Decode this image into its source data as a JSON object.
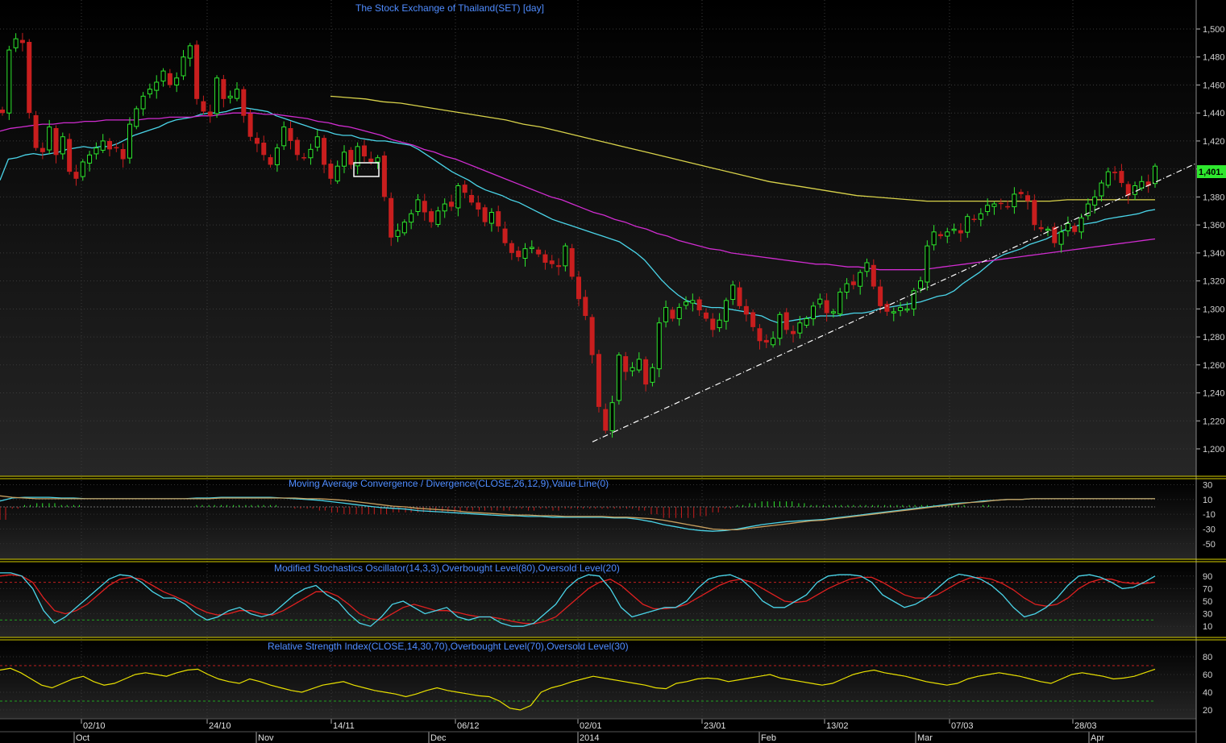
{
  "colors": {
    "background_top": "#000000",
    "background_bottom": "#2a2a2a",
    "up_candle": "#2ee82e",
    "down_candle": "#c81e1e",
    "ma_short": "#4ad4e8",
    "ma_mid": "#d02cd0",
    "ma_long": "#d8d24a",
    "trendline": "#ffffff",
    "macd_line": "#4ad4e8",
    "macd_signal": "#c8a060",
    "stoch_k": "#4ad4e8",
    "stoch_d": "#e02020",
    "rsi_line": "#e8e000",
    "overbought": "#c02020",
    "oversold": "#20a020",
    "panel_border": "#d8d000"
  },
  "chart_data": [
    {
      "type": "candlestick",
      "title": "The Stock Exchange of Thailand(SET) [day]",
      "last_value_label": "1,401.",
      "ylim": [
        1190,
        1510
      ],
      "y_ticks": [
        "1,200",
        "1,220",
        "1,240",
        "1,260",
        "1,280",
        "1,300",
        "1,320",
        "1,340",
        "1,360",
        "1,380",
        "1,400",
        "1,420",
        "1,440",
        "1,460",
        "1,480",
        "1,500"
      ],
      "x_date_labels": [
        "02/10",
        "24/10",
        "14/11",
        "06/12",
        "02/01",
        "23/01",
        "13/02",
        "07/03",
        "28/03"
      ],
      "x_month_labels": [
        "Oct",
        "Nov",
        "Dec",
        "2014",
        "Feb",
        "Mar",
        "Apr"
      ],
      "closes": [
        1440,
        1485,
        1493,
        1490,
        1440,
        1415,
        1412,
        1430,
        1410,
        1423,
        1398,
        1393,
        1405,
        1410,
        1415,
        1420,
        1414,
        1415,
        1407,
        1432,
        1443,
        1452,
        1457,
        1462,
        1470,
        1460,
        1465,
        1480,
        1488,
        1450,
        1441,
        1438,
        1465,
        1450,
        1452,
        1457,
        1438,
        1423,
        1418,
        1410,
        1403,
        1415,
        1430,
        1420,
        1410,
        1408,
        1414,
        1423,
        1403,
        1393,
        1402,
        1412,
        1403,
        1416,
        1409,
        1405,
        1408,
        1380,
        1351,
        1356,
        1362,
        1368,
        1378,
        1369,
        1362,
        1370,
        1375,
        1373,
        1388,
        1383,
        1376,
        1371,
        1362,
        1369,
        1359,
        1347,
        1340,
        1337,
        1343,
        1344,
        1339,
        1333,
        1332,
        1330,
        1345,
        1323,
        1307,
        1295,
        1267,
        1230,
        1213,
        1233,
        1267,
        1255,
        1258,
        1264,
        1246,
        1258,
        1290,
        1301,
        1293,
        1301,
        1305,
        1306,
        1299,
        1293,
        1285,
        1292,
        1306,
        1317,
        1302,
        1296,
        1287,
        1277,
        1276,
        1279,
        1296,
        1285,
        1282,
        1290,
        1293,
        1302,
        1307,
        1297,
        1298,
        1312,
        1318,
        1317,
        1326,
        1333,
        1316,
        1302,
        1298,
        1298,
        1301,
        1300,
        1313,
        1320,
        1345,
        1355,
        1352,
        1355,
        1357,
        1354,
        1366,
        1364,
        1368,
        1374,
        1375,
        1375,
        1373,
        1382,
        1382,
        1377,
        1360,
        1357,
        1357,
        1347,
        1355,
        1361,
        1355,
        1365,
        1375,
        1380,
        1390,
        1398,
        1397,
        1390,
        1381,
        1388,
        1391,
        1388,
        1402
      ],
      "series": [
        {
          "name": "",
          "role": "ma_short",
          "values": [
            1392,
            1407,
            1408,
            1410,
            1411,
            1410,
            1411,
            1412,
            1414,
            1415,
            1416,
            1415,
            1416,
            1416,
            1418,
            1421,
            1424,
            1426,
            1428,
            1430,
            1433,
            1435,
            1436,
            1437,
            1439,
            1440,
            1440,
            1441,
            1443,
            1444,
            1443,
            1442,
            1441,
            1438,
            1436,
            1434,
            1432,
            1430,
            1428,
            1427,
            1425,
            1424,
            1424,
            1422,
            1421,
            1420,
            1420,
            1419,
            1418,
            1417,
            1414,
            1410,
            1406,
            1402,
            1398,
            1395,
            1392,
            1388,
            1385,
            1383,
            1381,
            1378,
            1376,
            1373,
            1370,
            1367,
            1364,
            1362,
            1360,
            1358,
            1356,
            1354,
            1352,
            1350,
            1348,
            1344,
            1340,
            1335,
            1328,
            1321,
            1315,
            1310,
            1306,
            1304,
            1302,
            1301,
            1301,
            1300,
            1299,
            1298,
            1296,
            1295,
            1292,
            1290,
            1291,
            1292,
            1293,
            1294,
            1295,
            1295,
            1295,
            1296,
            1297,
            1297,
            1298,
            1300,
            1301,
            1302,
            1303,
            1304,
            1305,
            1307,
            1309,
            1310,
            1313,
            1318,
            1322,
            1326,
            1331,
            1336,
            1339,
            1341,
            1343,
            1346,
            1348,
            1350,
            1353,
            1356,
            1358,
            1360,
            1361,
            1362,
            1364,
            1365,
            1366,
            1367,
            1368,
            1370,
            1371
          ]
        },
        {
          "name": "",
          "role": "ma_mid",
          "values": [
            1427,
            1429,
            1430,
            1431,
            1432,
            1432,
            1433,
            1433,
            1434,
            1434,
            1435,
            1435,
            1435,
            1435,
            1436,
            1436,
            1437,
            1437,
            1437,
            1438,
            1438,
            1439,
            1440,
            1440,
            1440,
            1439,
            1439,
            1438,
            1437,
            1436,
            1434,
            1433,
            1431,
            1430,
            1428,
            1426,
            1424,
            1421,
            1419,
            1417,
            1414,
            1412,
            1409,
            1407,
            1404,
            1401,
            1398,
            1395,
            1392,
            1389,
            1386,
            1383,
            1380,
            1378,
            1375,
            1372,
            1369,
            1367,
            1364,
            1362,
            1359,
            1357,
            1354,
            1352,
            1349,
            1347,
            1345,
            1343,
            1342,
            1340,
            1339,
            1338,
            1337,
            1336,
            1335,
            1334,
            1333,
            1332,
            1332,
            1331,
            1330,
            1330,
            1329,
            1328,
            1328,
            1328,
            1328,
            1328,
            1329,
            1330,
            1331,
            1332,
            1333,
            1334,
            1335,
            1336,
            1337,
            1338,
            1339,
            1340,
            1341,
            1342,
            1343,
            1344,
            1345,
            1346,
            1347,
            1348,
            1349,
            1350
          ]
        },
        {
          "name": "",
          "role": "ma_long",
          "values": [
            1452,
            1451,
            1450,
            1448,
            1447,
            1445,
            1443,
            1441,
            1439,
            1437,
            1435,
            1432,
            1430,
            1427,
            1424,
            1421,
            1418,
            1415,
            1412,
            1409,
            1406,
            1403,
            1400,
            1397,
            1394,
            1391,
            1389,
            1387,
            1385,
            1383,
            1381,
            1380,
            1379,
            1378,
            1377,
            1377,
            1377,
            1377,
            1377,
            1377,
            1377,
            1377,
            1378,
            1378,
            1378,
            1378,
            1378,
            1378
          ]
        }
      ],
      "trendline": {
        "from": [
          "02/01",
          1205
        ],
        "to": [
          "Apr",
          1402
        ]
      }
    },
    {
      "type": "line",
      "title": "Moving Average Convergence / Divergence(CLOSE,26,12,9),Value Line(0)",
      "ylim": [
        -58,
        38
      ],
      "y_ticks": [
        "30",
        "10",
        "-10",
        "-30",
        "-50"
      ],
      "series": [
        {
          "name": "",
          "role": "macd_line",
          "values": [
            8,
            12,
            13,
            13,
            13,
            12,
            12,
            11,
            11,
            11,
            11,
            11,
            11,
            11,
            11,
            11,
            12,
            12,
            13,
            13,
            13,
            13,
            13,
            12,
            11,
            10,
            9,
            7,
            5,
            3,
            1,
            -1,
            -2,
            -3,
            -5,
            -6,
            -7,
            -8,
            -9,
            -10,
            -11,
            -12,
            -12,
            -13,
            -13,
            -14,
            -14,
            -14,
            -14,
            -14,
            -15,
            -15,
            -17,
            -20,
            -24,
            -27,
            -30,
            -32,
            -33,
            -32,
            -30,
            -27,
            -24,
            -22,
            -20,
            -19,
            -18,
            -17,
            -15,
            -13,
            -11,
            -9,
            -7,
            -5,
            -3,
            -1,
            1,
            3,
            5,
            6,
            8,
            9,
            10,
            10,
            11,
            11,
            11,
            11,
            11,
            11,
            11,
            11,
            11,
            11,
            11
          ]
        },
        {
          "name": "",
          "role": "macd_signal",
          "values": [
            15,
            13,
            12,
            11,
            11,
            11,
            11,
            11,
            11,
            11,
            11,
            11,
            11,
            11,
            11,
            11,
            11,
            11,
            12,
            12,
            12,
            12,
            12,
            12,
            12,
            11,
            11,
            10,
            9,
            7,
            5,
            3,
            1,
            0,
            -2,
            -3,
            -4,
            -5,
            -7,
            -8,
            -9,
            -10,
            -11,
            -11,
            -12,
            -12,
            -13,
            -13,
            -13,
            -13,
            -14,
            -14,
            -15,
            -16,
            -18,
            -21,
            -24,
            -27,
            -30,
            -31,
            -31,
            -29,
            -27,
            -25,
            -23,
            -21,
            -19,
            -18,
            -16,
            -14,
            -12,
            -10,
            -8,
            -6,
            -4,
            -2,
            0,
            2,
            4,
            6,
            7,
            9,
            10,
            10,
            11,
            11,
            11,
            11,
            11,
            11,
            11,
            11,
            11,
            11,
            11
          ]
        }
      ]
    },
    {
      "type": "line",
      "title": "Modified Stochastics Oscillator(14,3,3),Overbought Level(80),Oversold Level(20)",
      "ylim": [
        0,
        100
      ],
      "y_ticks": [
        "90",
        "70",
        "50",
        "30",
        "10"
      ],
      "overbought": 80,
      "oversold": 20,
      "series": [
        {
          "name": "",
          "role": "stoch_k",
          "values": [
            95,
            95,
            90,
            70,
            35,
            15,
            25,
            40,
            55,
            70,
            85,
            92,
            90,
            80,
            65,
            55,
            55,
            45,
            30,
            20,
            25,
            35,
            40,
            30,
            25,
            30,
            45,
            60,
            70,
            75,
            60,
            50,
            30,
            15,
            10,
            25,
            45,
            50,
            40,
            30,
            35,
            40,
            25,
            20,
            25,
            25,
            15,
            10,
            10,
            15,
            30,
            45,
            70,
            85,
            92,
            90,
            70,
            40,
            25,
            30,
            35,
            40,
            40,
            50,
            70,
            85,
            90,
            92,
            85,
            70,
            50,
            40,
            40,
            50,
            60,
            80,
            90,
            92,
            92,
            90,
            80,
            60,
            50,
            40,
            45,
            55,
            70,
            85,
            93,
            90,
            85,
            75,
            60,
            40,
            25,
            30,
            40,
            55,
            75,
            90,
            92,
            88,
            80,
            70,
            72,
            80,
            90
          ]
        },
        {
          "name": "",
          "role": "stoch_d",
          "values": [
            90,
            92,
            90,
            80,
            55,
            35,
            30,
            35,
            45,
            60,
            75,
            85,
            88,
            85,
            75,
            65,
            58,
            50,
            40,
            32,
            28,
            30,
            35,
            35,
            30,
            28,
            35,
            45,
            55,
            65,
            65,
            58,
            45,
            30,
            22,
            20,
            30,
            40,
            45,
            40,
            35,
            35,
            32,
            28,
            25,
            25,
            22,
            18,
            15,
            14,
            18,
            25,
            40,
            55,
            70,
            80,
            85,
            75,
            60,
            45,
            38,
            38,
            40,
            45,
            55,
            65,
            75,
            82,
            85,
            80,
            70,
            60,
            50,
            48,
            50,
            60,
            70,
            78,
            85,
            88,
            88,
            80,
            70,
            60,
            55,
            55,
            60,
            70,
            80,
            87,
            88,
            85,
            78,
            68,
            55,
            45,
            42,
            45,
            55,
            70,
            80,
            85,
            85,
            80,
            78,
            78,
            80
          ]
        }
      ]
    },
    {
      "type": "line",
      "title": "Relative Strength Index(CLOSE,14,30,70),Overbought Level(70),Oversold Level(30)",
      "ylim": [
        10,
        90
      ],
      "y_ticks": [
        "80",
        "60",
        "40",
        "20"
      ],
      "overbought": 70,
      "oversold": 30,
      "series": [
        {
          "name": "",
          "role": "rsi",
          "values": [
            65,
            67,
            62,
            55,
            48,
            45,
            50,
            55,
            58,
            52,
            48,
            50,
            55,
            60,
            62,
            60,
            58,
            62,
            65,
            66,
            60,
            55,
            52,
            50,
            55,
            52,
            48,
            45,
            42,
            40,
            44,
            48,
            50,
            52,
            48,
            45,
            42,
            40,
            38,
            35,
            38,
            42,
            45,
            42,
            40,
            38,
            36,
            35,
            30,
            22,
            20,
            25,
            40,
            45,
            48,
            52,
            55,
            58,
            56,
            54,
            52,
            50,
            48,
            45,
            44,
            50,
            52,
            55,
            56,
            55,
            52,
            54,
            56,
            58,
            60,
            56,
            54,
            52,
            50,
            48,
            50,
            55,
            60,
            63,
            65,
            62,
            60,
            58,
            55,
            52,
            50,
            48,
            50,
            55,
            58,
            60,
            62,
            60,
            58,
            55,
            52,
            50,
            55,
            60,
            62,
            60,
            58,
            55,
            56,
            58,
            62,
            66
          ]
        }
      ]
    }
  ]
}
